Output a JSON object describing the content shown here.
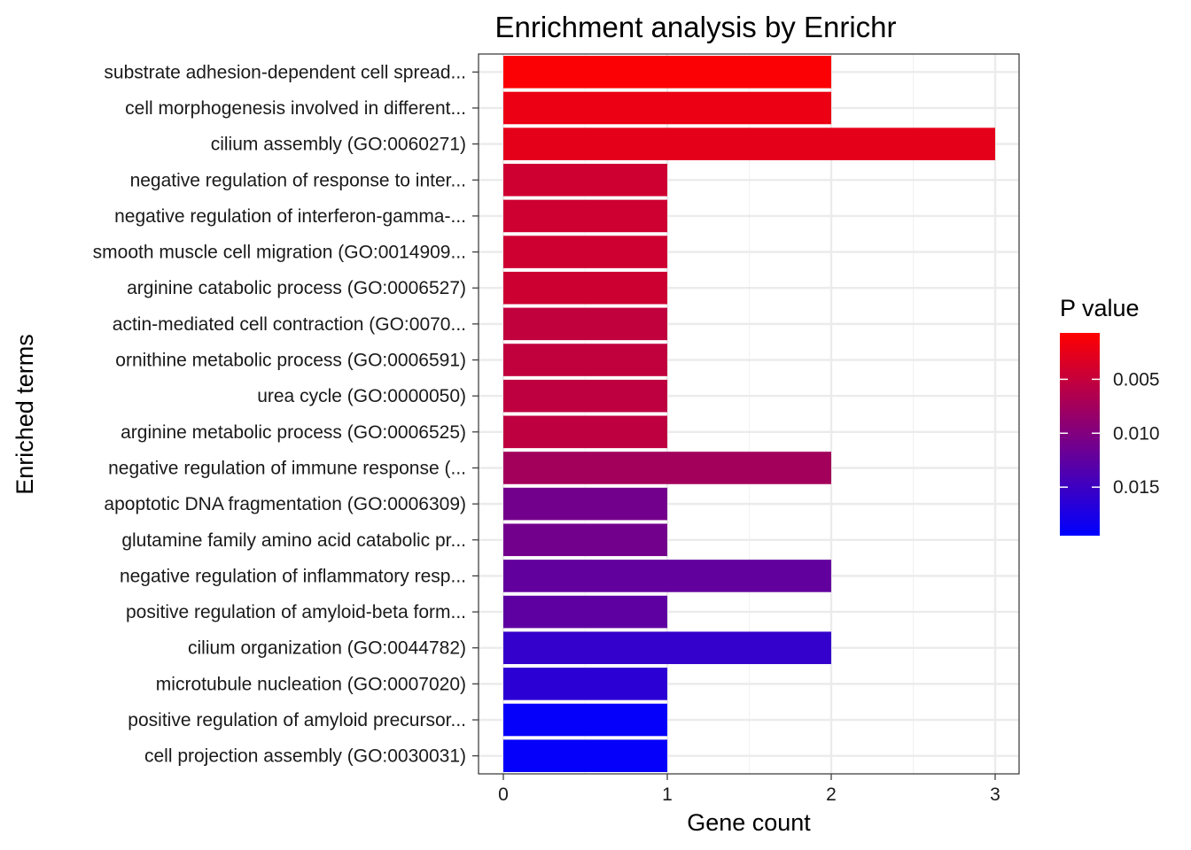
{
  "chart_data": {
    "type": "bar",
    "orientation": "horizontal",
    "title": "Enrichment analysis by Enrichr",
    "xlabel": "Gene count",
    "ylabel": "Enriched terms",
    "xlim": [
      0,
      3
    ],
    "x_ticks": [
      0,
      1,
      2,
      3
    ],
    "x_tick_labels": [
      "0",
      "1",
      "2",
      "3"
    ],
    "grid": true,
    "categories": [
      "substrate adhesion-dependent cell spread...",
      "cell morphogenesis involved in different...",
      "cilium assembly (GO:0060271)",
      "negative regulation of response to inter...",
      "negative regulation of interferon-gamma-...",
      "smooth muscle cell migration (GO:0014909...",
      "arginine catabolic process (GO:0006527)",
      "actin-mediated cell contraction (GO:0070...",
      "ornithine metabolic process (GO:0006591)",
      "urea cycle (GO:0000050)",
      "arginine metabolic process (GO:0006525)",
      "negative regulation of immune response (...",
      "apoptotic DNA fragmentation (GO:0006309)",
      "glutamine family amino acid catabolic pr...",
      "negative regulation of inflammatory resp...",
      "positive regulation of amyloid-beta form...",
      "cilium organization (GO:0044782)",
      "microtubule nucleation (GO:0007020)",
      "positive regulation of amyloid precursor...",
      "cell projection assembly (GO:0030031)"
    ],
    "values": [
      2,
      2,
      3,
      1,
      1,
      1,
      1,
      1,
      1,
      1,
      1,
      2,
      1,
      1,
      2,
      1,
      2,
      1,
      1,
      1
    ],
    "p_values": [
      0.001,
      0.0022,
      0.0026,
      0.0043,
      0.0043,
      0.0043,
      0.0044,
      0.0053,
      0.0053,
      0.0054,
      0.0055,
      0.0075,
      0.011,
      0.011,
      0.0123,
      0.0126,
      0.0157,
      0.0163,
      0.0191,
      0.0191
    ],
    "legend": {
      "title": "P value",
      "position": "right",
      "ticks": [
        0.005,
        0.01,
        0.015
      ],
      "tick_labels": [
        "0.005",
        "0.010",
        "0.015"
      ],
      "range": [
        0.0007,
        0.0195
      ],
      "low_color": "#ff0000",
      "high_color": "#0000ff"
    }
  }
}
